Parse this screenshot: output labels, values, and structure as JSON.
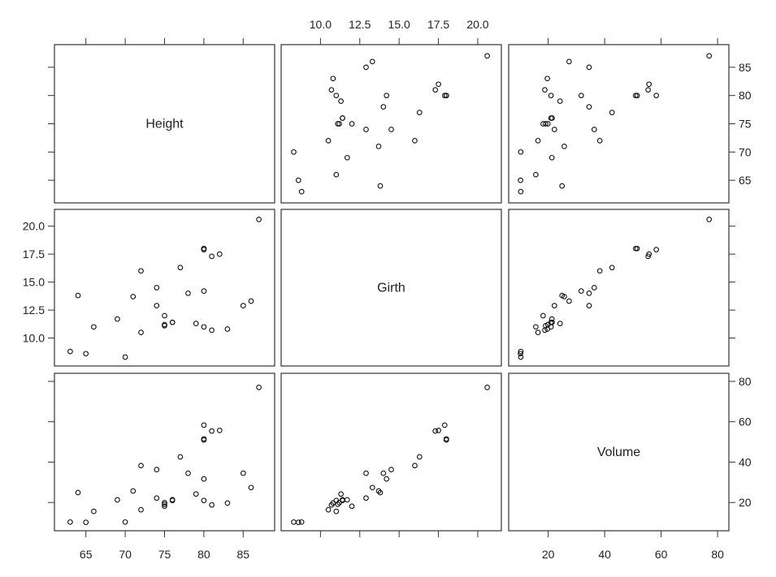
{
  "chart_data": {
    "type": "scatter",
    "subtype": "scatterplot-matrix",
    "title": "",
    "variables": [
      {
        "name": "Height",
        "range": [
          61,
          89
        ],
        "ticks": [
          65,
          70,
          75,
          80,
          85
        ],
        "tick_labels": [
          "65",
          "70",
          "75",
          "80",
          "85"
        ]
      },
      {
        "name": "Girth",
        "range": [
          7.5,
          21.5
        ],
        "ticks": [
          10.0,
          12.5,
          15.0,
          17.5,
          20.0
        ],
        "tick_labels": [
          "10.0",
          "12.5",
          "15.0",
          "17.5",
          "20.0"
        ]
      },
      {
        "name": "Volume",
        "range": [
          6,
          84
        ],
        "ticks": [
          20,
          40,
          60,
          80
        ],
        "tick_labels": [
          "20",
          "40",
          "60",
          "80"
        ]
      }
    ],
    "observations": {
      "Height": [
        63,
        64,
        65,
        66,
        69,
        70,
        71,
        72,
        72,
        74,
        74,
        75,
        75,
        75,
        76,
        76,
        77,
        78,
        79,
        80,
        80,
        80,
        80,
        80,
        81,
        81,
        82,
        83,
        85,
        86,
        87
      ],
      "Girth": [
        8.8,
        13.8,
        8.6,
        11.0,
        11.7,
        8.3,
        13.7,
        10.5,
        16.0,
        12.9,
        14.5,
        11.2,
        11.1,
        12.0,
        11.4,
        11.4,
        16.3,
        14.0,
        11.3,
        11.0,
        14.2,
        17.9,
        18.0,
        18.0,
        10.7,
        17.3,
        17.5,
        10.8,
        12.9,
        13.3,
        20.6
      ],
      "Volume": [
        10.3,
        24.9,
        10.2,
        15.6,
        21.3,
        10.3,
        25.7,
        16.4,
        38.3,
        22.2,
        36.3,
        19.9,
        19.1,
        18.2,
        21.0,
        21.4,
        42.6,
        34.5,
        24.2,
        21.0,
        31.7,
        58.3,
        51.0,
        51.5,
        18.8,
        55.4,
        55.7,
        19.7,
        34.5,
        27.4,
        77.0
      ]
    },
    "axis_layout": {
      "Height": {
        "top_labels": false,
        "right_labels": true,
        "bottom_labels": true,
        "left_labels": false
      },
      "Girth": {
        "top_labels": true,
        "right_labels": false,
        "bottom_labels": false,
        "left_labels": true
      },
      "Volume": {
        "top_labels": false,
        "right_labels": true,
        "bottom_labels": true,
        "left_labels": false
      }
    },
    "grid": false,
    "legend": "none"
  }
}
